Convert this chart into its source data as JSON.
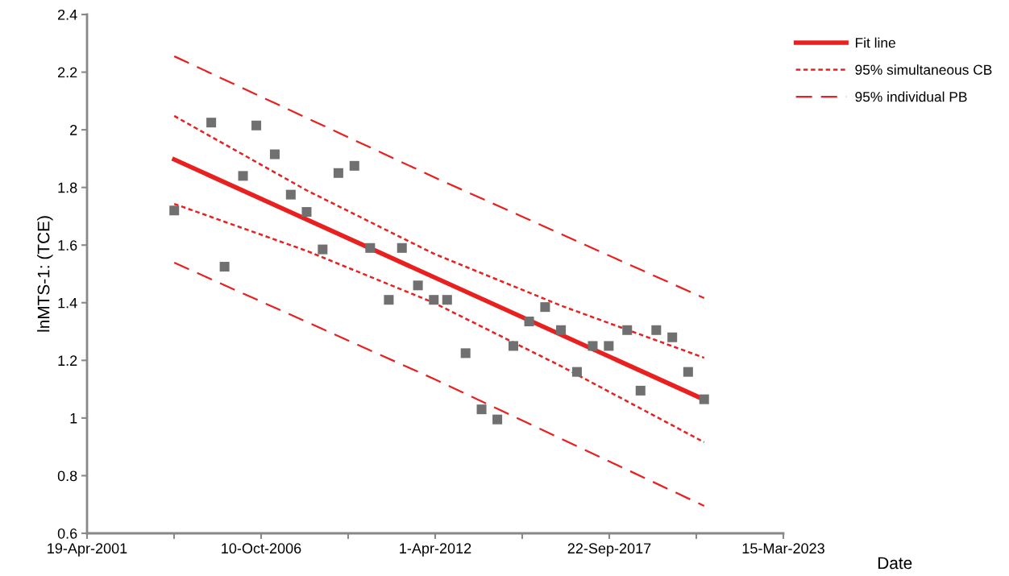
{
  "chart_data": {
    "type": "scatter",
    "xlabel": "Date",
    "ylabel": "lnMTS-1: (TCE)",
    "xlim": [
      "2001-04-19",
      "2023-03-15"
    ],
    "ylim": [
      0.6,
      2.4
    ],
    "xticks": [
      {
        "value": "2001-04-19",
        "label": "19-Apr-2001"
      },
      {
        "value": "2004-01-14",
        "label": null
      },
      {
        "value": "2006-10-10",
        "label": "10-Oct-2006"
      },
      {
        "value": "2009-07-06",
        "label": null
      },
      {
        "value": "2012-04-01",
        "label": "1-Apr-2012"
      },
      {
        "value": "2014-12-27",
        "label": null
      },
      {
        "value": "2017-09-22",
        "label": "22-Sep-2017"
      },
      {
        "value": "2020-06-18",
        "label": null
      },
      {
        "value": "2023-03-15",
        "label": "15-Mar-2023"
      }
    ],
    "yticks": [
      0.6,
      0.8,
      1,
      1.2,
      1.4,
      1.6,
      1.8,
      2,
      2.2,
      2.4
    ],
    "grid": false,
    "legend": "top right",
    "series": [
      {
        "color": "#707070",
        "marker": "square",
        "x": [
          "2004-01",
          "2005-03",
          "2005-08",
          "2006-03",
          "2006-08",
          "2007-03",
          "2007-09",
          "2008-03",
          "2008-09",
          "2009-03",
          "2009-09",
          "2010-03",
          "2010-10",
          "2011-03",
          "2011-09",
          "2012-03",
          "2012-08",
          "2013-03",
          "2013-09",
          "2014-03",
          "2014-09",
          "2015-03",
          "2015-09",
          "2016-03",
          "2016-09",
          "2017-03",
          "2017-09",
          "2018-04",
          "2018-09",
          "2019-03",
          "2019-09",
          "2020-03",
          "2020-09"
        ],
        "values": [
          1.72,
          2.025,
          1.525,
          1.84,
          2.015,
          1.915,
          1.775,
          1.715,
          1.585,
          1.85,
          1.875,
          1.59,
          1.41,
          1.59,
          1.46,
          1.41,
          1.41,
          1.225,
          1.03,
          0.995,
          1.25,
          1.335,
          1.385,
          1.305,
          1.16,
          1.25,
          1.25,
          1.305,
          1.095,
          1.305,
          1.28,
          1.16,
          1.065
        ]
      },
      {
        "type": "line",
        "name": "Fit line",
        "color": "#e8201f",
        "line_style": "solid",
        "x": [
          "2004-01",
          "2020-09"
        ],
        "values": [
          1.897,
          1.064
        ]
      },
      {
        "type": "line",
        "name": "95% simultaneous CB",
        "color": "#e8201f",
        "line_style": "dotted",
        "x": [
          "2004-01",
          "2008-03",
          "2012-03",
          "2016-03",
          "2020-09"
        ],
        "values": [
          2.048,
          1.79,
          1.57,
          1.39,
          1.209
        ]
      },
      {
        "type": "line",
        "color": "#e8201f",
        "line_style": "dotted",
        "x": [
          "2004-01",
          "2008-03",
          "2012-03",
          "2016-03",
          "2020-09"
        ],
        "values": [
          1.743,
          1.58,
          1.4,
          1.18,
          0.916
        ]
      },
      {
        "type": "line",
        "name": "95% individual PB",
        "color": "#e8201f",
        "line_style": "dashed",
        "x": [
          "2004-01",
          "2012-03",
          "2020-09"
        ],
        "values": [
          2.255,
          1.836,
          1.416
        ]
      },
      {
        "type": "line",
        "color": "#e8201f",
        "line_style": "dashed",
        "x": [
          "2004-01",
          "2012-03",
          "2020-09"
        ],
        "values": [
          1.539,
          1.136,
          0.695
        ]
      }
    ]
  }
}
